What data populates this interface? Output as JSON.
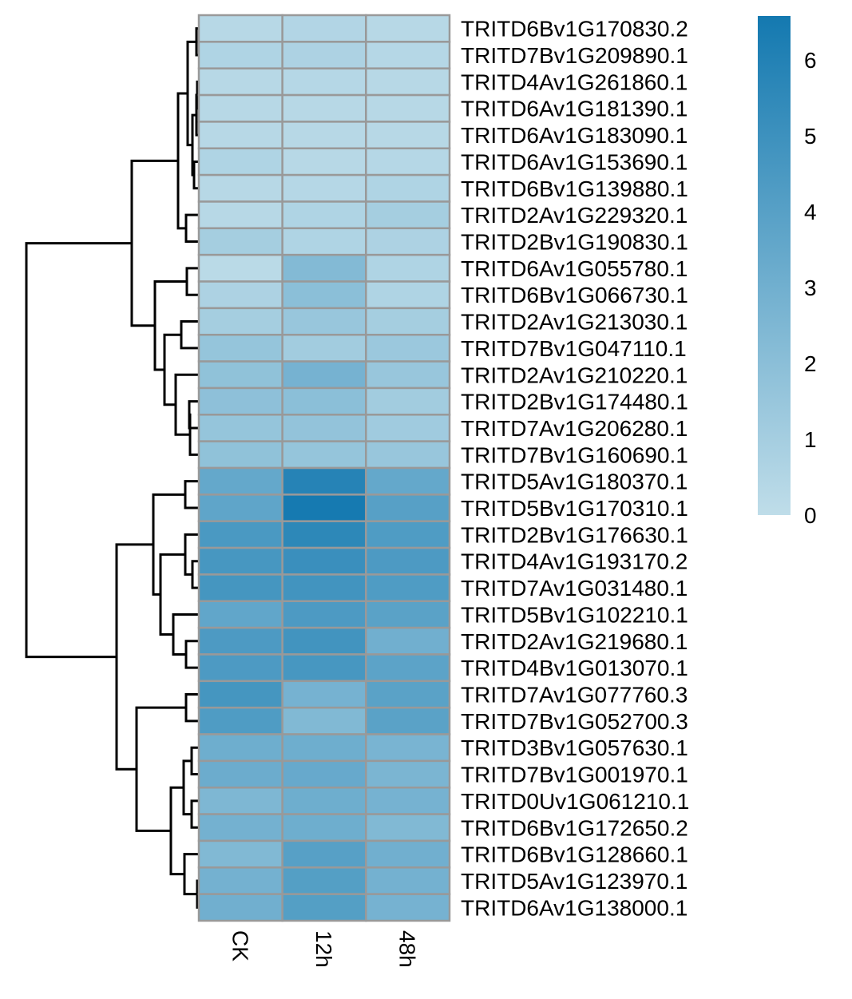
{
  "chart_data": {
    "type": "heatmap",
    "title": "",
    "columns": [
      "CK",
      "12h",
      "48h"
    ],
    "rows": [
      "TRITD6Bv1G170830.2",
      "TRITD7Bv1G209890.1",
      "TRITD4Av1G261860.1",
      "TRITD6Av1G181390.1",
      "TRITD6Av1G183090.1",
      "TRITD6Av1G153690.1",
      "TRITD6Bv1G139880.1",
      "TRITD2Av1G229320.1",
      "TRITD2Bv1G190830.1",
      "TRITD6Av1G055780.1",
      "TRITD6Bv1G066730.1",
      "TRITD2Av1G213030.1",
      "TRITD7Bv1G047110.1",
      "TRITD2Av1G210220.1",
      "TRITD2Bv1G174480.1",
      "TRITD7Av1G206280.1",
      "TRITD7Bv1G160690.1",
      "TRITD5Av1G180370.1",
      "TRITD5Bv1G170310.1",
      "TRITD2Bv1G176630.1",
      "TRITD4Av1G193170.2",
      "TRITD7Av1G031480.1",
      "TRITD5Bv1G102210.1",
      "TRITD2Av1G219680.1",
      "TRITD4Bv1G013070.1",
      "TRITD7Av1G077760.3",
      "TRITD7Bv1G052700.3",
      "TRITD3Bv1G057630.1",
      "TRITD7Bv1G001970.1",
      "TRITD0Uv1G061210.1",
      "TRITD6Bv1G172650.2",
      "TRITD6Bv1G128660.1",
      "TRITD5Av1G123970.1",
      "TRITD6Av1G138000.1"
    ],
    "values": [
      [
        0.3,
        0.5,
        0.3
      ],
      [
        0.6,
        0.7,
        0.4
      ],
      [
        0.3,
        0.4,
        0.3
      ],
      [
        0.3,
        0.3,
        0.3
      ],
      [
        0.3,
        0.3,
        0.3
      ],
      [
        0.6,
        0.3,
        0.4
      ],
      [
        0.3,
        0.4,
        0.6
      ],
      [
        0.3,
        0.6,
        1.0
      ],
      [
        1.0,
        0.6,
        0.7
      ],
      [
        0.2,
        2.3,
        0.6
      ],
      [
        0.7,
        2.0,
        0.6
      ],
      [
        1.0,
        1.5,
        1.0
      ],
      [
        1.6,
        1.1,
        1.4
      ],
      [
        1.8,
        2.8,
        1.5
      ],
      [
        1.9,
        2.0,
        1.1
      ],
      [
        1.6,
        1.7,
        1.2
      ],
      [
        1.8,
        1.6,
        1.5
      ],
      [
        3.5,
        5.9,
        3.5
      ],
      [
        3.7,
        6.5,
        4.0
      ],
      [
        4.5,
        5.6,
        4.3
      ],
      [
        4.6,
        5.1,
        4.4
      ],
      [
        4.7,
        4.8,
        4.3
      ],
      [
        3.6,
        4.4,
        3.9
      ],
      [
        4.4,
        4.8,
        3.0
      ],
      [
        4.4,
        4.6,
        3.8
      ],
      [
        4.7,
        2.8,
        3.9
      ],
      [
        4.3,
        2.4,
        3.9
      ],
      [
        3.1,
        3.1,
        2.7
      ],
      [
        3.2,
        3.4,
        2.6
      ],
      [
        2.5,
        3.1,
        2.8
      ],
      [
        2.9,
        3.1,
        2.4
      ],
      [
        2.4,
        4.0,
        3.0
      ],
      [
        2.9,
        4.1,
        2.9
      ],
      [
        3.0,
        4.1,
        2.8
      ]
    ],
    "color_scale": {
      "min": 0,
      "max": 6.58,
      "low_color": "#bfdde9",
      "high_color": "#1479b0"
    },
    "legend": {
      "position": "right",
      "ticks": [
        0,
        1,
        2,
        3,
        4,
        5,
        6
      ]
    },
    "row_dendrogram": true,
    "column_dendrogram": false,
    "cell_border_color": "#999999"
  }
}
